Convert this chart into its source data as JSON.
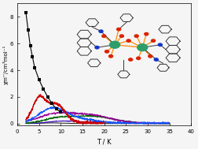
{
  "title": "",
  "xlabel": "T / K",
  "ylabel": "χm’’/cm³mol⁻¹",
  "xlim": [
    0,
    40
  ],
  "ylim": [
    -0.15,
    9.0
  ],
  "xticks": [
    0,
    5,
    10,
    15,
    20,
    25,
    30,
    35,
    40
  ],
  "yticks": [
    0,
    2,
    4,
    6,
    8
  ],
  "background": "#f5f5f5",
  "black_squares_T": [
    2.0,
    2.5,
    3.0,
    3.5,
    4.0,
    5.0,
    6.0,
    7.0,
    8.0,
    9.0,
    10.0
  ],
  "black_squares_chi": [
    8.3,
    7.0,
    5.8,
    5.0,
    4.2,
    3.3,
    2.6,
    2.0,
    1.5,
    1.1,
    0.85
  ],
  "metal_color": "#2d9e6b",
  "oxygen_color": "#dd2200",
  "nitrogen_color": "#1133cc",
  "bond_color": "#ff8800",
  "ring_color": "#2a2a2a"
}
